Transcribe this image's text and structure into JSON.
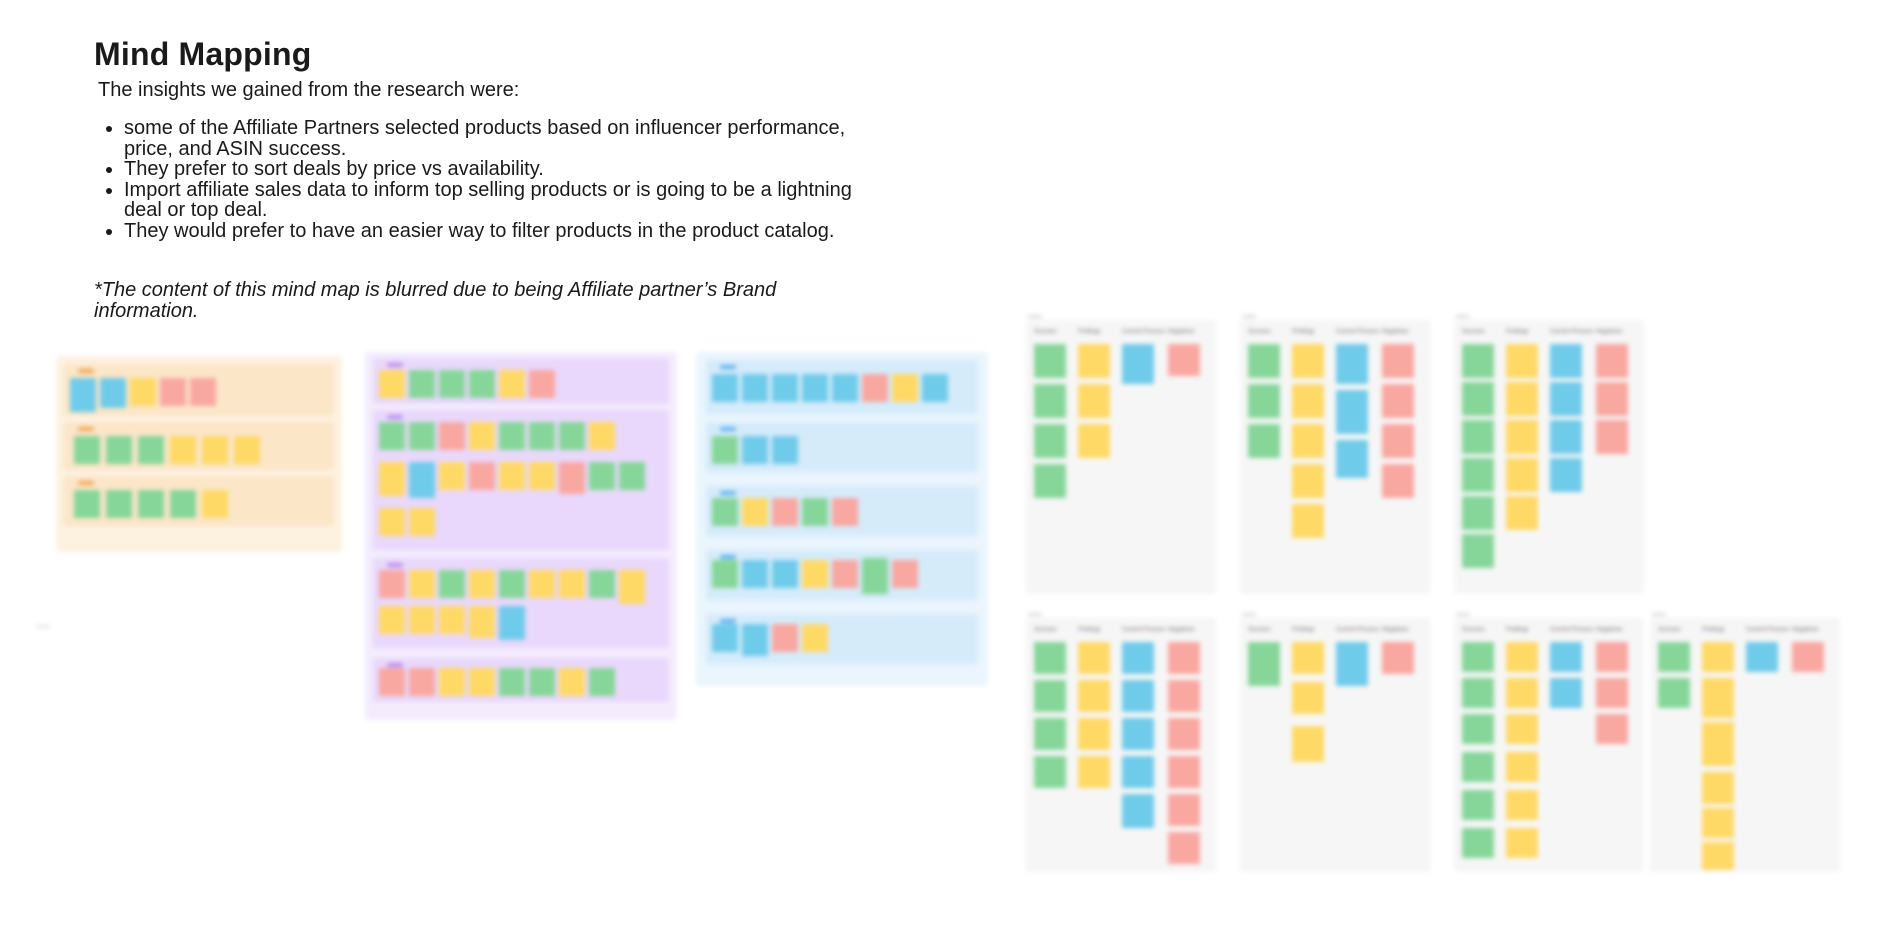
{
  "header": {
    "title": "Mind Mapping",
    "intro": "The insights we gained from the research were:"
  },
  "insights": [
    "some of the Affiliate Partners selected products based on influencer performance,  price, and ASIN success.",
    "They prefer to sort deals by price vs availability.",
    "Import affiliate sales data to inform top selling products or is going to be a lightning deal or top deal.",
    "They would prefer to have an easier way to filter products in the product catalog."
  ],
  "note": "*The content of this mind map is blurred due to being Affiliate partner’s Brand information.",
  "board_columns": [
    "Success",
    "Findings",
    "Current Process",
    "Negatives"
  ],
  "colors": {
    "green": "#86d69a",
    "yellow": "#ffd966",
    "blue": "#6fcbea",
    "red": "#f9a7a1",
    "orange_group": "#fdf1e0",
    "purple_group": "#f4ecfd",
    "blue_group": "#eaf5fd"
  }
}
